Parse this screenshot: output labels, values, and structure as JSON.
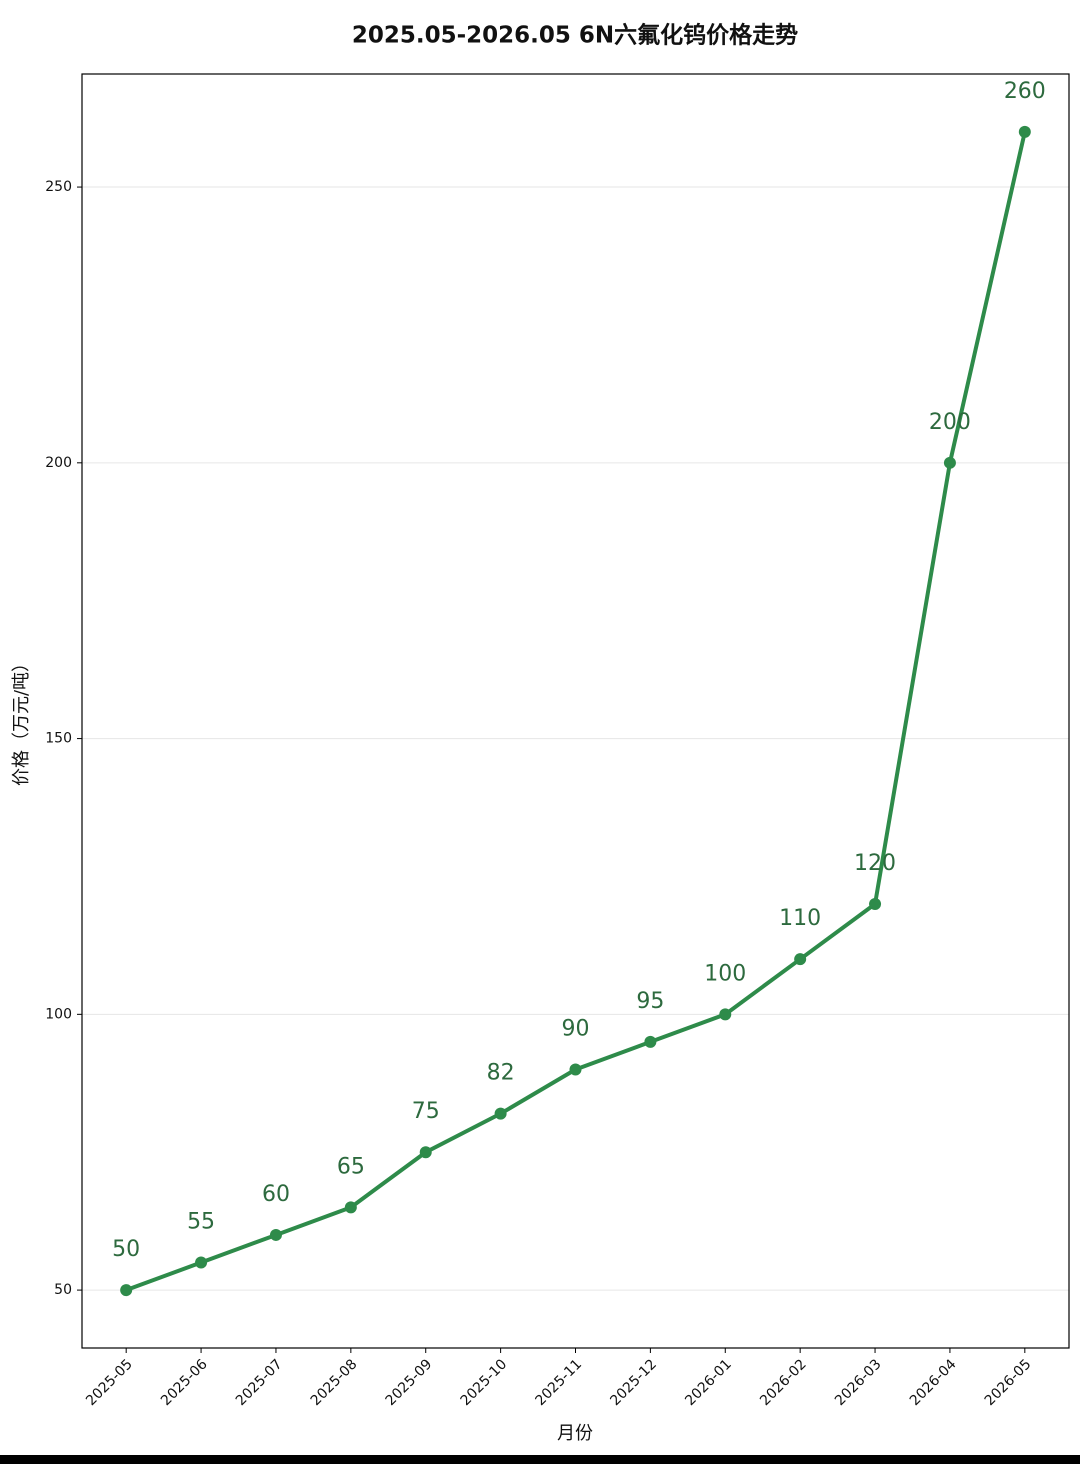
{
  "chart_data": {
    "type": "line",
    "title": "2025.05-2026.05 6N六氟化钨价格走势",
    "x_label": "月份",
    "y_label": "价格（万元/吨）",
    "categories": [
      "2025-05",
      "2025-06",
      "2025-07",
      "2025-08",
      "2025-09",
      "2025-10",
      "2025-11",
      "2025-12",
      "2026-01",
      "2026-02",
      "2026-03",
      "2026-04",
      "2026-05"
    ],
    "series": [
      {
        "name": "价格",
        "color": "#2e8b4a",
        "label_color": "#2d6a3e",
        "values": [
          50,
          55,
          60,
          65,
          75,
          82,
          90,
          95,
          100,
          110,
          120,
          200,
          260
        ]
      }
    ],
    "ylim": [
      39.5,
      270.5
    ],
    "yticks": [
      50,
      100,
      150,
      200,
      250
    ],
    "grid": true
  }
}
